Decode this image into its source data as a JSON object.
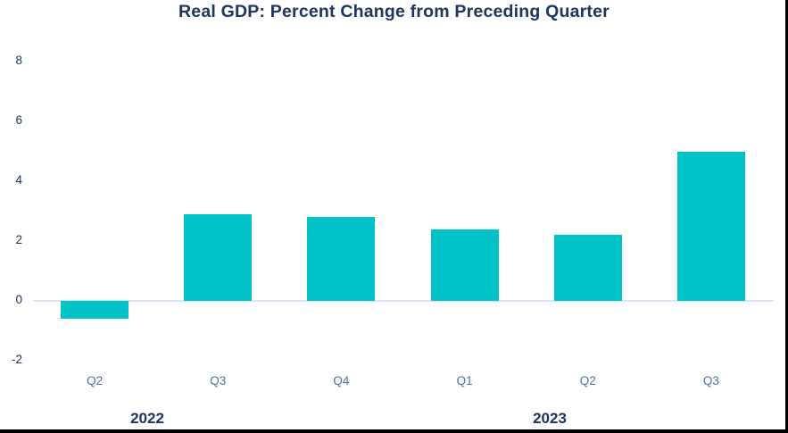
{
  "chart_data": {
    "type": "bar",
    "title": "Real GDP: Percent Change from Preceding Quarter",
    "categories": [
      "Q2",
      "Q3",
      "Q4",
      "Q1",
      "Q2",
      "Q3"
    ],
    "group_labels": [
      "2022",
      "2023"
    ],
    "values": [
      -0.6,
      2.9,
      2.8,
      2.4,
      2.2,
      5.0
    ],
    "yticks": [
      8,
      6,
      4,
      2,
      0,
      -2
    ],
    "ylim": [
      -2,
      8
    ],
    "xlabel": "",
    "ylabel": "",
    "grid": false,
    "legend": false,
    "bar_color": "#00c3c7",
    "zero_line_color": "#dee3f2",
    "axis_text_color": "#1e3560",
    "quarter_text_color": "#4c70a6"
  }
}
